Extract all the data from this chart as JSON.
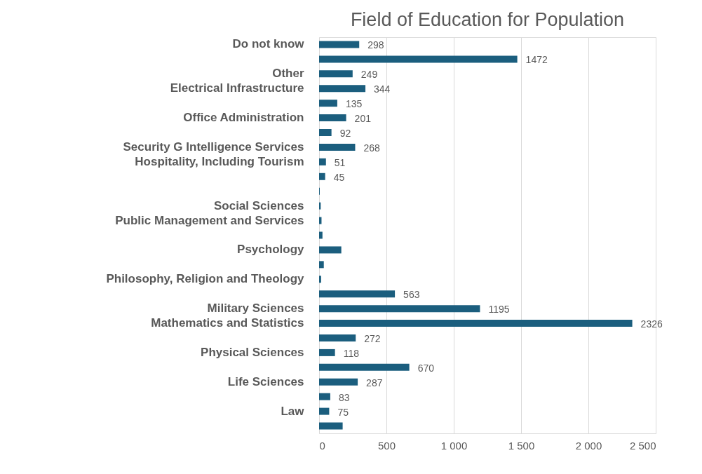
{
  "chart_data": {
    "type": "bar",
    "orientation": "horizontal",
    "title": "Field of Education for Population",
    "categories": [
      "Do not know",
      null,
      "Other",
      "Electrical Infrastructure",
      null,
      "Office Administration",
      null,
      "Security G Intelligence Services",
      "Hospitality, Including Tourism",
      null,
      null,
      "Social Sciences",
      "Public Management and Services",
      null,
      "Psychology",
      null,
      "Philosophy, Religion and Theology",
      null,
      "Military Sciences",
      "Mathematics and Statistics",
      null,
      "Physical Sciences",
      null,
      "Life Sciences",
      null,
      "Law",
      null
    ],
    "values": [
      298,
      1472,
      249,
      344,
      135,
      201,
      92,
      268,
      51,
      45,
      5,
      12,
      18,
      25,
      165,
      35,
      15,
      563,
      1195,
      2326,
      272,
      118,
      670,
      287,
      83,
      75,
      175
    ],
    "value_labels": [
      "298",
      "1472",
      "249",
      "344",
      "135",
      "201",
      "92",
      "268",
      "51",
      "45",
      null,
      null,
      null,
      null,
      null,
      null,
      null,
      "563",
      "1195",
      "2326",
      "272",
      "118",
      "670",
      "287",
      "83",
      "75",
      null
    ],
    "color": "#1b5e7e",
    "xlim": [
      0,
      2500
    ],
    "xticks": [
      0,
      500,
      {
        "value": 1000,
        "label": "1 000"
      },
      {
        "value": 1500,
        "label": "1 500"
      },
      {
        "value": 2000,
        "label": "2 000"
      },
      {
        "value": 2500,
        "label": "2 500"
      }
    ],
    "grid": "x"
  }
}
